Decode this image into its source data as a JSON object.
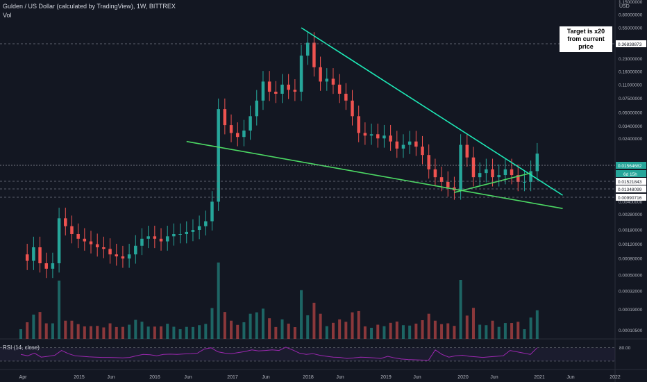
{
  "header": {
    "title": "Gulden / US Dollar (calculated by TradingView), 1W, BITTREX",
    "volume_label": "Vol"
  },
  "annotation": {
    "line1": "Target is x20",
    "line2": "from current price"
  },
  "rsi": {
    "label": "RSI (14, close)",
    "level_label": "80.00"
  },
  "colors": {
    "background": "#131722",
    "up": "#26a69a",
    "down": "#ef5350",
    "trendline_top": "#1de9b6",
    "trendline_bottom": "#4cd964",
    "rsi_line": "#9c27b0",
    "text": "#b2b5be"
  },
  "chart_data": {
    "type": "candlestick",
    "x_axis_labels": [
      "Apr",
      "2015",
      "Jun",
      "2016",
      "Jun",
      "2017",
      "Jun",
      "2018",
      "Jun",
      "2019",
      "Jun",
      "2020",
      "Jun",
      "2021",
      "Jun",
      "2022"
    ],
    "y_axis": {
      "unit": "USD",
      "scale": "log",
      "ticks": [
        "1.15000000",
        "0.80000000",
        "0.55000000",
        "0.23000000",
        "0.16000000",
        "0.11000000",
        "0.07500000",
        "0.05000000",
        "0.03400000",
        "0.02400000",
        "0.00600000",
        "0.00400000",
        "0.00280000",
        "0.00180000",
        "0.00120000",
        "0.00080000",
        "0.00050000",
        "0.00032000",
        "0.00019000",
        "0.00010500"
      ],
      "price_labels": [
        {
          "value": "0.36838873",
          "style": "plain"
        },
        {
          "value": "0.01564682",
          "style": "current"
        },
        {
          "value": "6d 15h",
          "style": "countdown"
        },
        {
          "value": "0.01521843",
          "style": "plain"
        },
        {
          "value": "0.01348099",
          "style": "plain"
        },
        {
          "value": "0.00990716",
          "style": "plain"
        }
      ]
    },
    "price_series": [
      {
        "t": "2014-04",
        "v": 0.0009
      },
      {
        "t": "2014-05",
        "v": 0.00075
      },
      {
        "t": "2014-06",
        "v": 0.0011
      },
      {
        "t": "2014-07",
        "v": 0.0007
      },
      {
        "t": "2014-08",
        "v": 0.0006
      },
      {
        "t": "2014-09",
        "v": 0.0007
      },
      {
        "t": "2014-10",
        "v": 0.0025
      },
      {
        "t": "2014-11",
        "v": 0.002
      },
      {
        "t": "2014-12",
        "v": 0.0016
      },
      {
        "t": "2015-01",
        "v": 0.0014
      },
      {
        "t": "2015-02",
        "v": 0.0013
      },
      {
        "t": "2015-03",
        "v": 0.0012
      },
      {
        "t": "2015-04",
        "v": 0.0011
      },
      {
        "t": "2015-05",
        "v": 0.00105
      },
      {
        "t": "2015-06",
        "v": 0.0009
      },
      {
        "t": "2015-07",
        "v": 0.00085
      },
      {
        "t": "2015-08",
        "v": 0.0008
      },
      {
        "t": "2015-09",
        "v": 0.0009
      },
      {
        "t": "2015-10",
        "v": 0.00115
      },
      {
        "t": "2015-11",
        "v": 0.0014
      },
      {
        "t": "2015-12",
        "v": 0.0015
      },
      {
        "t": "2016-01",
        "v": 0.0014
      },
      {
        "t": "2016-02",
        "v": 0.0013
      },
      {
        "t": "2016-03",
        "v": 0.0015
      },
      {
        "t": "2016-04",
        "v": 0.0016
      },
      {
        "t": "2016-05",
        "v": 0.0016
      },
      {
        "t": "2016-06",
        "v": 0.0017
      },
      {
        "t": "2016-07",
        "v": 0.0018
      },
      {
        "t": "2016-08",
        "v": 0.002
      },
      {
        "t": "2016-09",
        "v": 0.0023
      },
      {
        "t": "2016-10",
        "v": 0.004
      },
      {
        "t": "2016-11",
        "v": 0.055
      },
      {
        "t": "2016-12",
        "v": 0.035
      },
      {
        "t": "2017-01",
        "v": 0.028
      },
      {
        "t": "2017-02",
        "v": 0.025
      },
      {
        "t": "2017-03",
        "v": 0.03
      },
      {
        "t": "2017-04",
        "v": 0.045
      },
      {
        "t": "2017-05",
        "v": 0.07
      },
      {
        "t": "2017-06",
        "v": 0.12
      },
      {
        "t": "2017-07",
        "v": 0.09
      },
      {
        "t": "2017-08",
        "v": 0.085
      },
      {
        "t": "2017-09",
        "v": 0.11
      },
      {
        "t": "2017-10",
        "v": 0.095
      },
      {
        "t": "2017-11",
        "v": 0.09
      },
      {
        "t": "2017-12",
        "v": 0.25
      },
      {
        "t": "2018-01",
        "v": 0.36
      },
      {
        "t": "2018-02",
        "v": 0.18
      },
      {
        "t": "2018-03",
        "v": 0.12
      },
      {
        "t": "2018-04",
        "v": 0.13
      },
      {
        "t": "2018-05",
        "v": 0.11
      },
      {
        "t": "2018-06",
        "v": 0.085
      },
      {
        "t": "2018-07",
        "v": 0.07
      },
      {
        "t": "2018-08",
        "v": 0.045
      },
      {
        "t": "2018-09",
        "v": 0.028
      },
      {
        "t": "2018-10",
        "v": 0.026
      },
      {
        "t": "2018-11",
        "v": 0.027
      },
      {
        "t": "2018-12",
        "v": 0.024
      },
      {
        "t": "2019-01",
        "v": 0.026
      },
      {
        "t": "2019-02",
        "v": 0.022
      },
      {
        "t": "2019-03",
        "v": 0.018
      },
      {
        "t": "2019-04",
        "v": 0.02
      },
      {
        "t": "2019-05",
        "v": 0.022
      },
      {
        "t": "2019-06",
        "v": 0.019
      },
      {
        "t": "2019-07",
        "v": 0.015
      },
      {
        "t": "2019-08",
        "v": 0.01
      },
      {
        "t": "2019-09",
        "v": 0.008
      },
      {
        "t": "2019-10",
        "v": 0.007
      },
      {
        "t": "2019-11",
        "v": 0.006
      },
      {
        "t": "2019-12",
        "v": 0.0055
      },
      {
        "t": "2020-01",
        "v": 0.02
      },
      {
        "t": "2020-02",
        "v": 0.014
      },
      {
        "t": "2020-03",
        "v": 0.008
      },
      {
        "t": "2020-04",
        "v": 0.009
      },
      {
        "t": "2020-05",
        "v": 0.01
      },
      {
        "t": "2020-06",
        "v": 0.008
      },
      {
        "t": "2020-07",
        "v": 0.0085
      },
      {
        "t": "2020-08",
        "v": 0.01
      },
      {
        "t": "2020-09",
        "v": 0.0085
      },
      {
        "t": "2020-10",
        "v": 0.007
      },
      {
        "t": "2020-11",
        "v": 0.007
      },
      {
        "t": "2020-12",
        "v": 0.0095
      },
      {
        "t": "2021-01",
        "v": 0.0156
      }
    ],
    "trendlines": [
      {
        "name": "upper-resistance",
        "from": {
          "t": "2017-12",
          "v": 0.55
        },
        "to": {
          "t": "2021-05",
          "v": 0.0048
        }
      },
      {
        "name": "lower-support",
        "from": {
          "t": "2016-06",
          "v": 0.022
        },
        "to": {
          "t": "2021-05",
          "v": 0.0033
        }
      },
      {
        "name": "inner-support",
        "from": {
          "t": "2019-12",
          "v": 0.0052
        },
        "to": {
          "t": "2020-12",
          "v": 0.009
        }
      }
    ],
    "rsi_series": [
      55,
      50,
      60,
      45,
      48,
      52,
      70,
      58,
      50,
      48,
      46,
      45,
      44,
      44,
      43,
      42,
      44,
      50,
      55,
      54,
      50,
      55,
      56,
      55,
      57,
      58,
      60,
      75,
      80,
      65,
      60,
      58,
      62,
      66,
      72,
      68,
      70,
      72,
      70,
      82,
      72,
      60,
      55,
      58,
      52,
      48,
      45,
      44,
      40,
      42,
      45,
      44,
      42,
      40,
      48,
      42,
      38,
      36,
      35,
      34,
      33,
      72,
      55,
      45,
      50,
      52,
      48,
      46,
      44,
      46,
      48,
      50,
      70,
      65,
      60,
      55,
      80
    ]
  }
}
